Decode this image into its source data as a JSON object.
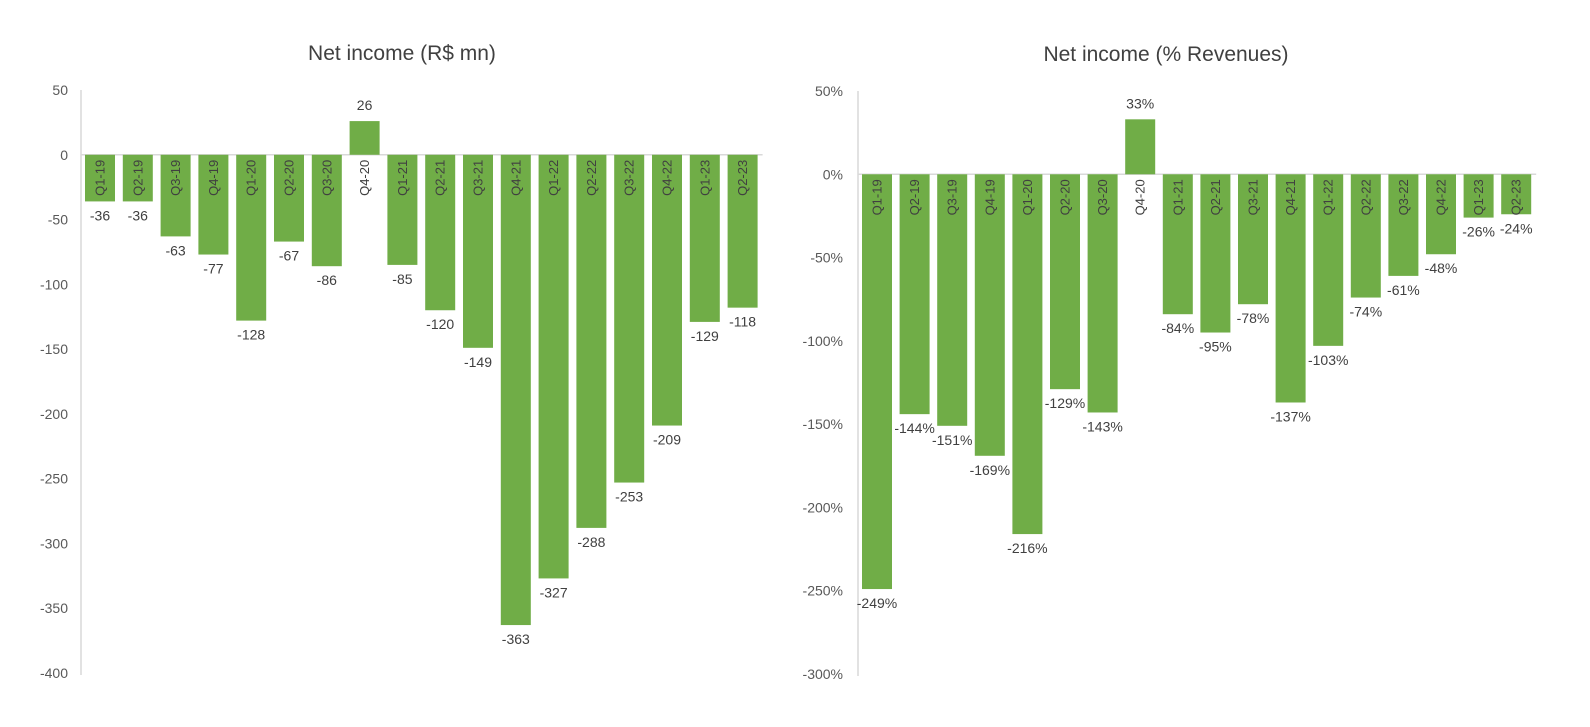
{
  "chart_data": [
    {
      "type": "bar",
      "title": "Net income (R$ mn)",
      "xlabel": "",
      "ylabel": "",
      "ylim": [
        -400,
        50
      ],
      "yticks": [
        50,
        0,
        -50,
        -100,
        -150,
        -200,
        -250,
        -300,
        -350,
        -400
      ],
      "ytick_labels": [
        "50",
        "0",
        "-50",
        "-100",
        "-150",
        "-200",
        "-250",
        "-300",
        "-350",
        "-400"
      ],
      "categories": [
        "Q1-19",
        "Q2-19",
        "Q3-19",
        "Q4-19",
        "Q1-20",
        "Q2-20",
        "Q3-20",
        "Q4-20",
        "Q1-21",
        "Q2-21",
        "Q3-21",
        "Q4-21",
        "Q1-22",
        "Q2-22",
        "Q3-22",
        "Q4-22",
        "Q1-23",
        "Q2-23"
      ],
      "values": [
        -36,
        -36,
        -63,
        -77,
        -128,
        -67,
        -86,
        26,
        -85,
        -120,
        -149,
        -363,
        -327,
        -288,
        -253,
        -209,
        -129,
        -118
      ],
      "value_labels": [
        "-36",
        "-36",
        "-63",
        "-77",
        "-128",
        "-67",
        "-86",
        "26",
        "-85",
        "-120",
        "-149",
        "-363",
        "-327",
        "-288",
        "-253",
        "-209",
        "-129",
        "-118"
      ],
      "bar_color": "#70ad47"
    },
    {
      "type": "bar",
      "title": "Net income (% Revenues)",
      "xlabel": "",
      "ylabel": "",
      "ylim": [
        -300,
        50
      ],
      "yticks": [
        50,
        0,
        -50,
        -100,
        -150,
        -200,
        -250,
        -300
      ],
      "ytick_labels": [
        "50%",
        "0%",
        "-50%",
        "-100%",
        "-150%",
        "-200%",
        "-250%",
        "-300%"
      ],
      "categories": [
        "Q1-19",
        "Q2-19",
        "Q3-19",
        "Q4-19",
        "Q1-20",
        "Q2-20",
        "Q3-20",
        "Q4-20",
        "Q1-21",
        "Q2-21",
        "Q3-21",
        "Q4-21",
        "Q1-22",
        "Q2-22",
        "Q3-22",
        "Q4-22",
        "Q1-23",
        "Q2-23"
      ],
      "values": [
        -249,
        -144,
        -151,
        -169,
        -216,
        -129,
        -143,
        33,
        -84,
        -95,
        -78,
        -137,
        -103,
        -74,
        -61,
        -48,
        -26,
        -24
      ],
      "value_labels": [
        "-249%",
        "-144%",
        "-151%",
        "-169%",
        "-216%",
        "-129%",
        "-143%",
        "33%",
        "-84%",
        "-95%",
        "-78%",
        "-137%",
        "-103%",
        "-74%",
        "-61%",
        "-48%",
        "-26%",
        "-24%"
      ],
      "bar_color": "#70ad47"
    }
  ]
}
